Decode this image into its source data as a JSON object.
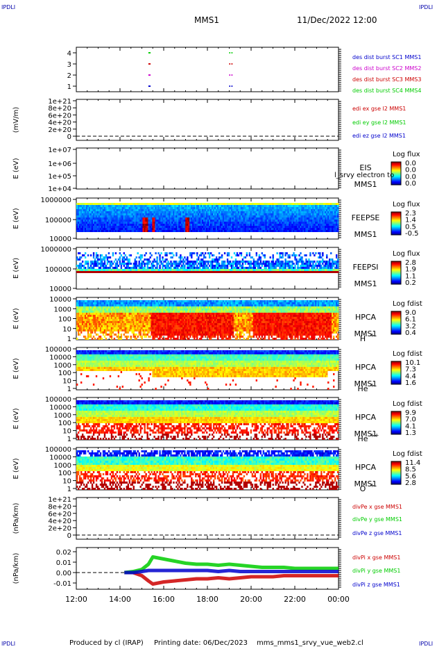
{
  "header": {
    "spacecraft": "MMS1",
    "datetime": "11/Dec/2022 12:00",
    "corner_label": "IPDLI"
  },
  "footer": {
    "produced_by": "Produced by cl (IRAP)",
    "printing_date": "Printing date: 06/Dec/2023",
    "filename": "mms_mms1_srvy_vue_web2.cl"
  },
  "colors": {
    "axis": "#000000",
    "blue": "#0000cc",
    "magenta": "#cc00cc",
    "red": "#cc0000",
    "green": "#00cc00"
  },
  "x_axis": {
    "ticks": [
      "12:00",
      "14:00",
      "16:00",
      "18:00",
      "20:00",
      "22:00",
      "00:00"
    ],
    "range_hours": [
      12,
      24
    ]
  },
  "chart_data": [
    {
      "type": "scatter",
      "panel": "burst",
      "yticks": [
        "4",
        "3",
        "2",
        "1"
      ],
      "ylim": [
        0.5,
        4.5
      ],
      "series": [
        {
          "name": "des dist burst SC1 MMS1",
          "color": "#0000cc",
          "y": 1,
          "x": [
            15.3,
            15.35,
            19.0,
            19.1
          ]
        },
        {
          "name": "des dist burst SC2 MMS2",
          "color": "#cc00cc",
          "y": 2,
          "x": [
            15.3,
            15.35,
            19.0,
            19.1
          ]
        },
        {
          "name": "des dist burst SC3 MMS3",
          "color": "#cc0000",
          "y": 3,
          "x": [
            15.3,
            15.35,
            19.0,
            19.1
          ]
        },
        {
          "name": "des dist burst SC4 MMS4",
          "color": "#00cc00",
          "y": 4,
          "x": [
            15.3,
            15.35,
            19.0,
            19.1
          ]
        }
      ]
    },
    {
      "type": "line",
      "panel": "edi",
      "ylabel": "(mV/m)",
      "yticks": [
        "1e+21",
        "8e+20",
        "6e+20",
        "4e+20",
        "2e+20",
        "0"
      ],
      "ylim": [
        0,
        1e+21
      ],
      "legend": [
        "edi ex gse l2 MMS1",
        "edi ey gse l2 MMS1",
        "edi ez gse l2 MMS1"
      ],
      "legend_colors": [
        "#cc0000",
        "#00cc00",
        "#0000cc"
      ],
      "series": []
    },
    {
      "type": "heatmap",
      "panel": "eis",
      "ylabel": "E (eV)",
      "yticks": [
        "1e+07",
        "1e+06",
        "1e+05",
        "1e+04"
      ],
      "instrument": "EIS",
      "spacecraft": "MMS1",
      "overlay_text": "l_srvy electron to",
      "colorbar_title": "Log flux",
      "colorbar_ticks": [
        "0.0",
        "0.0",
        "0.0",
        "0.0"
      ]
    },
    {
      "type": "heatmap",
      "panel": "feepse",
      "ylabel": "E (eV)",
      "yticks": [
        "1000000",
        "100000",
        "10000"
      ],
      "instrument": "FEEPSE",
      "spacecraft": "MMS1",
      "colorbar_title": "Log flux",
      "colorbar_ticks": [
        "2.3",
        "1.4",
        "0.5",
        "-0.5"
      ]
    },
    {
      "type": "heatmap",
      "panel": "feepsi",
      "ylabel": "E (eV)",
      "yticks": [
        "1000000",
        "100000",
        "10000"
      ],
      "instrument": "FEEPSI",
      "spacecraft": "MMS1",
      "colorbar_title": "Log flux",
      "colorbar_ticks": [
        "2.8",
        "1.9",
        "1.1",
        "0.2"
      ]
    },
    {
      "type": "heatmap",
      "panel": "hpca_h",
      "ylabel": "E (eV)",
      "yticks": [
        "10000",
        "1000",
        "100",
        "10",
        "1"
      ],
      "instrument": "HPCA",
      "spacecraft": "MMS1",
      "species": "H",
      "species_charge": "+",
      "colorbar_title": "Log fdist",
      "colorbar_ticks": [
        "9.0",
        "6.1",
        "3.2",
        "0.4"
      ]
    },
    {
      "type": "heatmap",
      "panel": "hpca_he",
      "ylabel": "E (eV)",
      "yticks": [
        "100000",
        "10000",
        "1000",
        "100",
        "10",
        "1"
      ],
      "instrument": "HPCA",
      "spacecraft": "MMS1",
      "species": "He",
      "species_charge": "+",
      "colorbar_title": "Log fdist",
      "colorbar_ticks": [
        "10.1",
        "7.3",
        "4.4",
        "1.6"
      ]
    },
    {
      "type": "heatmap",
      "panel": "hpca_hepp",
      "ylabel": "E (eV)",
      "yticks": [
        "100000",
        "10000",
        "1000",
        "100",
        "10",
        "1"
      ],
      "instrument": "HPCA",
      "spacecraft": "MMS1",
      "species": "He",
      "species_charge": "++",
      "colorbar_title": "Log fdist",
      "colorbar_ticks": [
        "9.9",
        "7.0",
        "4.1",
        "1.3"
      ]
    },
    {
      "type": "heatmap",
      "panel": "hpca_o",
      "ylabel": "E (eV)",
      "yticks": [
        "100000",
        "10000",
        "1000",
        "100",
        "10",
        "1"
      ],
      "instrument": "HPCA",
      "spacecraft": "MMS1",
      "species": "O",
      "species_charge": "+",
      "colorbar_title": "Log fdist",
      "colorbar_ticks": [
        "11.4",
        "8.5",
        "5.6",
        "2.8"
      ]
    },
    {
      "type": "line",
      "panel": "divpe",
      "ylabel": "(nPa/km)",
      "yticks": [
        "1e+21",
        "8e+20",
        "6e+20",
        "4e+20",
        "2e+20",
        "0"
      ],
      "ylim": [
        0,
        1e+21
      ],
      "legend": [
        "divPe x gse MMS1",
        "divPe y gse MMS1",
        "divPe z gse MMS1"
      ],
      "legend_colors": [
        "#cc0000",
        "#00cc00",
        "#0000cc"
      ],
      "series": []
    },
    {
      "type": "line",
      "panel": "divpi",
      "ylabel": "(nPa/km)",
      "yticks": [
        "0.02",
        "0.01",
        "0.00",
        "-0.01"
      ],
      "ylim": [
        -0.016,
        0.024
      ],
      "legend": [
        "divPi x gse MMS1",
        "divPi y gse MMS1",
        "divPi z gse MMS1"
      ],
      "legend_colors": [
        "#cc0000",
        "#00cc00",
        "#0000cc"
      ],
      "series": [
        {
          "name": "divPi x gse MMS1",
          "color": "#cc0000",
          "x": [
            14.2,
            14.6,
            15.0,
            15.3,
            15.5,
            16.0,
            16.5,
            17.0,
            17.5,
            18.0,
            18.5,
            19.0,
            19.5,
            20.0,
            20.5,
            21.0,
            21.5,
            22.0,
            22.5,
            23.0,
            23.5,
            24.0
          ],
          "y": [
            0.0,
            0.0,
            -0.003,
            -0.008,
            -0.011,
            -0.009,
            -0.008,
            -0.007,
            -0.006,
            -0.006,
            -0.005,
            -0.006,
            -0.005,
            -0.004,
            -0.004,
            -0.004,
            -0.003,
            -0.003,
            -0.003,
            -0.003,
            -0.003,
            -0.003
          ]
        },
        {
          "name": "divPi y gse MMS1",
          "color": "#00cc00",
          "x": [
            14.2,
            14.6,
            15.0,
            15.3,
            15.5,
            16.0,
            16.5,
            17.0,
            17.5,
            18.0,
            18.5,
            19.0,
            19.5,
            20.0,
            20.5,
            21.0,
            21.5,
            22.0,
            22.5,
            23.0,
            23.5,
            24.0
          ],
          "y": [
            0.0,
            0.001,
            0.003,
            0.008,
            0.015,
            0.013,
            0.011,
            0.009,
            0.008,
            0.008,
            0.007,
            0.008,
            0.007,
            0.006,
            0.005,
            0.005,
            0.005,
            0.004,
            0.004,
            0.004,
            0.004,
            0.004
          ]
        },
        {
          "name": "divPi z gse MMS1",
          "color": "#0000cc",
          "x": [
            14.2,
            14.6,
            15.0,
            15.3,
            15.5,
            16.0,
            16.5,
            17.0,
            17.5,
            18.0,
            18.5,
            19.0,
            19.5,
            20.0,
            20.5,
            21.0,
            21.5,
            22.0,
            22.5,
            23.0,
            23.5,
            24.0
          ],
          "y": [
            0.0,
            0.0,
            0.001,
            0.002,
            0.002,
            0.002,
            0.002,
            0.002,
            0.002,
            0.002,
            0.001,
            0.002,
            0.001,
            0.001,
            0.001,
            0.001,
            0.001,
            0.001,
            0.001,
            0.001,
            0.001,
            0.001
          ]
        }
      ]
    }
  ]
}
